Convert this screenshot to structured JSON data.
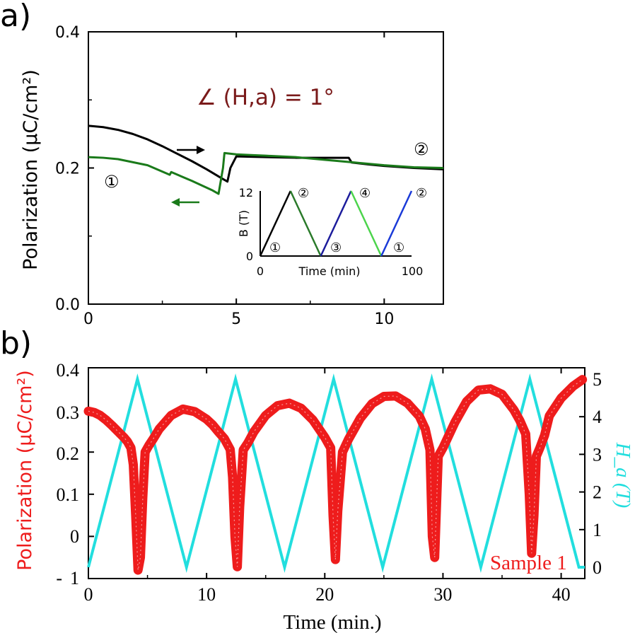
{
  "chart_data": [
    {
      "panel_label": "a)",
      "type": "line",
      "ylabel": "Polarization (μC/cm²)",
      "xlim": [
        0,
        12
      ],
      "ylim": [
        0.0,
        0.4
      ],
      "xticks": [
        "0",
        "5",
        "10"
      ],
      "yticks": [
        "0.0",
        "0.2",
        "0.4"
      ],
      "annotation": "∠ (H,a) =  1°",
      "curve_markers": [
        "①",
        "②"
      ],
      "colors": {
        "up": "#000000",
        "down": "#1a7a1a",
        "annotation": "#7a1a1a"
      },
      "series": [
        {
          "color": "#000000",
          "x": [
            0,
            0.5,
            1,
            1.5,
            2,
            2.5,
            3,
            3.5,
            4,
            4.5,
            4.7,
            4.8,
            5,
            6,
            7,
            8,
            8.8,
            8.9,
            9.5,
            10,
            11,
            12
          ],
          "y": [
            0.262,
            0.26,
            0.256,
            0.25,
            0.242,
            0.232,
            0.221,
            0.21,
            0.198,
            0.185,
            0.18,
            0.2,
            0.217,
            0.216,
            0.215,
            0.215,
            0.215,
            0.208,
            0.205,
            0.203,
            0.2,
            0.198
          ]
        },
        {
          "color": "#1a7a1a",
          "x": [
            12,
            11,
            10,
            9,
            8,
            7,
            6,
            5.5,
            5,
            4.6,
            4.55,
            4.4,
            4.2,
            3.5,
            2.8,
            2.75,
            2,
            1,
            0.5,
            0
          ],
          "y": [
            0.2,
            0.201,
            0.204,
            0.208,
            0.212,
            0.216,
            0.218,
            0.219,
            0.22,
            0.222,
            0.2,
            0.162,
            0.167,
            0.181,
            0.194,
            0.19,
            0.204,
            0.213,
            0.215,
            0.216
          ]
        }
      ],
      "inset": {
        "xlabel": "Time (min)",
        "ylabel": "B (T)",
        "xlim": [
          0,
          100
        ],
        "ylim": [
          0,
          12
        ],
        "xticks": [
          "0",
          "100"
        ],
        "yticks": [
          "0",
          "12"
        ],
        "labels": [
          "①",
          "②",
          "③",
          "④",
          "①",
          "②"
        ],
        "segments": [
          {
            "color": "#000000",
            "x": [
              0,
              20
            ],
            "y": [
              0,
              12
            ]
          },
          {
            "color": "#2a7a2a",
            "x": [
              20,
              40
            ],
            "y": [
              12,
              0
            ]
          },
          {
            "color": "#1c1c9c",
            "x": [
              40,
              60
            ],
            "y": [
              0,
              12
            ]
          },
          {
            "color": "#4cd44c",
            "x": [
              60,
              80
            ],
            "y": [
              12,
              0
            ]
          },
          {
            "color": "#1a3ad8",
            "x": [
              80,
              100
            ],
            "y": [
              0,
              12
            ]
          }
        ]
      }
    },
    {
      "panel_label": "b)",
      "type": "line",
      "xlabel": "Time (min.)",
      "ylabel": "Polarization (μC/cm²)",
      "y2label": "H_a (T)",
      "legend": "Sample 1",
      "xlim": [
        0,
        42
      ],
      "ylim": [
        -0.1,
        0.4
      ],
      "y2lim": [
        -0.3,
        5.3
      ],
      "xticks": [
        "0",
        "10",
        "20",
        "30",
        "40"
      ],
      "yticks": [
        "0.4",
        "0.3",
        "0.2",
        "0.1",
        "0",
        "-",
        "1"
      ],
      "y2ticks": [
        "5",
        "4",
        "3",
        "2",
        "1",
        "0"
      ],
      "colors": {
        "polarization": "#ee1c1c",
        "field": "#22dede"
      },
      "series": [
        {
          "name": "Polarization",
          "color": "#ee1c1c",
          "x": [
            0,
            0.5,
            1,
            1.5,
            2,
            2.5,
            3,
            3.3,
            3.6,
            3.8,
            4,
            4.2,
            4.4,
            4.6,
            4.8,
            5.1,
            5.5,
            6,
            7,
            8,
            9,
            10,
            10.5,
            11,
            11.5,
            12,
            12.2,
            12.4,
            12.6,
            12.8,
            13.1,
            13.5,
            14,
            15,
            16,
            17,
            18,
            19,
            20,
            20.5,
            20.7,
            20.9,
            21.1,
            21.5,
            22,
            23,
            24,
            25,
            26,
            27,
            28,
            28.5,
            28.9,
            29.1,
            29.3,
            29.6,
            30,
            31,
            32,
            33,
            34,
            35,
            36,
            36.5,
            37,
            37.3,
            37.5,
            37.7,
            37.9,
            38.2,
            38.6,
            39,
            40,
            41,
            41.8
          ],
          "y": [
            0.297,
            0.294,
            0.287,
            0.276,
            0.263,
            0.249,
            0.235,
            0.225,
            0.21,
            0.17,
            0.05,
            -0.08,
            -0.05,
            0.09,
            0.2,
            0.215,
            0.232,
            0.255,
            0.287,
            0.302,
            0.296,
            0.278,
            0.265,
            0.248,
            0.232,
            0.206,
            0.14,
            0.0,
            -0.072,
            0.07,
            0.205,
            0.222,
            0.248,
            0.287,
            0.31,
            0.316,
            0.304,
            0.276,
            0.235,
            0.21,
            0.05,
            -0.055,
            0.06,
            0.2,
            0.23,
            0.28,
            0.315,
            0.332,
            0.333,
            0.316,
            0.285,
            0.255,
            0.205,
            0.0,
            -0.05,
            0.19,
            0.21,
            0.27,
            0.32,
            0.347,
            0.35,
            0.337,
            0.3,
            0.275,
            0.243,
            0.1,
            -0.04,
            0.05,
            0.19,
            0.21,
            0.24,
            0.286,
            0.328,
            0.356,
            0.372
          ]
        },
        {
          "name": "H_a",
          "color": "#22dede",
          "x": [
            0,
            4.15,
            8.3,
            12.45,
            16.6,
            20.75,
            24.9,
            29.05,
            33.2,
            37.35,
            41.5,
            42
          ],
          "y": [
            0,
            5,
            0,
            5,
            0,
            5,
            0,
            5,
            0,
            5,
            0,
            0
          ]
        }
      ]
    }
  ]
}
